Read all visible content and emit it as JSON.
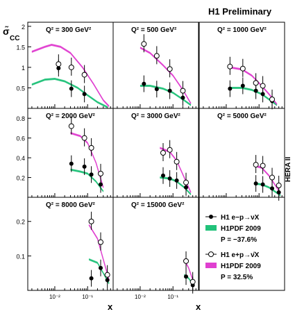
{
  "header": {
    "title": "H1 Preliminary"
  },
  "side_label": "HERA II",
  "ylabel_main": "σ̃",
  "ylabel_sub": "CC",
  "xlabel": "x",
  "legend": [
    {
      "label_a": "H1 e",
      "label_b": "p→νX",
      "sup": "−",
      "marker": "filled"
    },
    {
      "label": "H1PDF 2009",
      "band": "green"
    },
    {
      "label": "P = −37.6%",
      "sub": "e"
    },
    {
      "label_a": "H1 e",
      "label_b": "p→ν̄X",
      "sup": "+",
      "marker": "open"
    },
    {
      "label": "H1PDF 2009",
      "band": "magenta"
    },
    {
      "label": "P = 32.5%",
      "sub": "e"
    }
  ],
  "colors": {
    "eminus_band": "#22c27a",
    "eplus_band": "#e040d0",
    "eminus_line": "#1aa060",
    "eplus_line": "#cc22cc"
  },
  "chart_data": {
    "type": "scatter",
    "xscale": "log",
    "panels": [
      {
        "label": "Q² = 300 GeV²",
        "row": 0,
        "col": 0,
        "ylim": [
          0,
          2.1
        ],
        "yticks": [
          "0.5",
          "1",
          "1.5",
          "2"
        ],
        "ytickvals": [
          0.5,
          1,
          1.5,
          2
        ],
        "em_pts": [
          [
            0.013,
            0.98
          ],
          [
            0.032,
            0.48
          ],
          [
            0.08,
            0.35
          ]
        ],
        "ep_pts": [
          [
            0.013,
            1.08
          ],
          [
            0.032,
            1.0
          ],
          [
            0.08,
            0.82
          ]
        ],
        "em_curve": [
          [
            0.002,
            0.58
          ],
          [
            0.005,
            0.7
          ],
          [
            0.01,
            0.72
          ],
          [
            0.02,
            0.66
          ],
          [
            0.05,
            0.5
          ],
          [
            0.1,
            0.32
          ],
          [
            0.2,
            0.15
          ],
          [
            0.4,
            0.03
          ]
        ],
        "ep_curve": [
          [
            0.002,
            1.38
          ],
          [
            0.005,
            1.5
          ],
          [
            0.008,
            1.55
          ],
          [
            0.015,
            1.5
          ],
          [
            0.03,
            1.35
          ],
          [
            0.07,
            1.0
          ],
          [
            0.15,
            0.6
          ],
          [
            0.3,
            0.2
          ],
          [
            0.45,
            0.05
          ]
        ]
      },
      {
        "label": "Q² = 500 GeV²",
        "row": 0,
        "col": 1,
        "ylim": [
          0,
          2.1
        ],
        "yticks": [],
        "ytickvals": [],
        "em_pts": [
          [
            0.013,
            0.6
          ],
          [
            0.032,
            0.47
          ],
          [
            0.08,
            0.43
          ],
          [
            0.2,
            0.26
          ]
        ],
        "ep_pts": [
          [
            0.013,
            1.57
          ],
          [
            0.032,
            1.28
          ],
          [
            0.08,
            0.96
          ],
          [
            0.2,
            0.43
          ]
        ],
        "em_curve": [
          [
            0.01,
            0.55
          ],
          [
            0.02,
            0.55
          ],
          [
            0.05,
            0.48
          ],
          [
            0.1,
            0.38
          ],
          [
            0.2,
            0.22
          ],
          [
            0.35,
            0.08
          ]
        ],
        "ep_curve": [
          [
            0.01,
            1.48
          ],
          [
            0.02,
            1.35
          ],
          [
            0.05,
            1.05
          ],
          [
            0.1,
            0.8
          ],
          [
            0.2,
            0.45
          ],
          [
            0.35,
            0.12
          ]
        ]
      },
      {
        "label": "Q² = 1000 GeV²",
        "row": 0,
        "col": 2,
        "ylim": [
          0,
          2.1
        ],
        "yticks": [],
        "ytickvals": [],
        "em_pts": [
          [
            0.013,
            0.48
          ],
          [
            0.032,
            0.55
          ],
          [
            0.08,
            0.43
          ],
          [
            0.13,
            0.35
          ],
          [
            0.25,
            0.18
          ]
        ],
        "ep_pts": [
          [
            0.013,
            1.02
          ],
          [
            0.032,
            0.97
          ],
          [
            0.08,
            0.62
          ],
          [
            0.13,
            0.55
          ],
          [
            0.25,
            0.22
          ]
        ],
        "em_curve": [
          [
            0.013,
            0.5
          ],
          [
            0.03,
            0.5
          ],
          [
            0.06,
            0.45
          ],
          [
            0.12,
            0.35
          ],
          [
            0.2,
            0.22
          ],
          [
            0.35,
            0.08
          ]
        ],
        "ep_curve": [
          [
            0.013,
            1.0
          ],
          [
            0.03,
            0.95
          ],
          [
            0.06,
            0.8
          ],
          [
            0.12,
            0.55
          ],
          [
            0.2,
            0.35
          ],
          [
            0.35,
            0.1
          ]
        ]
      },
      {
        "label": "Q² = 2000 GeV²",
        "row": 1,
        "col": 0,
        "ylim": [
          0,
          0.9
        ],
        "yticks": [
          "0.2",
          "0.4",
          "0.6",
          "0.8"
        ],
        "ytickvals": [
          0.2,
          0.4,
          0.6,
          0.8
        ],
        "em_pts": [
          [
            0.032,
            0.34
          ],
          [
            0.08,
            0.31
          ],
          [
            0.13,
            0.23
          ],
          [
            0.25,
            0.13
          ]
        ],
        "ep_pts": [
          [
            0.032,
            0.72
          ],
          [
            0.08,
            0.6
          ],
          [
            0.13,
            0.5
          ],
          [
            0.25,
            0.24
          ]
        ],
        "em_curve": [
          [
            0.03,
            0.28
          ],
          [
            0.06,
            0.26
          ],
          [
            0.1,
            0.24
          ],
          [
            0.18,
            0.16
          ],
          [
            0.3,
            0.06
          ]
        ],
        "ep_curve": [
          [
            0.03,
            0.65
          ],
          [
            0.06,
            0.62
          ],
          [
            0.1,
            0.55
          ],
          [
            0.18,
            0.35
          ],
          [
            0.3,
            0.1
          ]
        ]
      },
      {
        "label": "Q² = 3000 GeV²",
        "row": 1,
        "col": 1,
        "ylim": [
          0,
          0.9
        ],
        "yticks": [],
        "ytickvals": [],
        "em_pts": [
          [
            0.05,
            0.22
          ],
          [
            0.08,
            0.19
          ],
          [
            0.13,
            0.17
          ],
          [
            0.25,
            0.1
          ]
        ],
        "ep_pts": [
          [
            0.05,
            0.45
          ],
          [
            0.08,
            0.48
          ],
          [
            0.13,
            0.36
          ],
          [
            0.25,
            0.15
          ]
        ],
        "em_curve": [
          [
            0.04,
            0.2
          ],
          [
            0.08,
            0.19
          ],
          [
            0.13,
            0.16
          ],
          [
            0.22,
            0.1
          ],
          [
            0.35,
            0.03
          ]
        ],
        "ep_curve": [
          [
            0.04,
            0.5
          ],
          [
            0.08,
            0.46
          ],
          [
            0.13,
            0.37
          ],
          [
            0.22,
            0.2
          ],
          [
            0.35,
            0.05
          ]
        ]
      },
      {
        "label": "Q² = 5000 GeV²",
        "row": 1,
        "col": 2,
        "ylim": [
          0,
          0.9
        ],
        "yticks": [],
        "ytickvals": [],
        "em_pts": [
          [
            0.08,
            0.14
          ],
          [
            0.13,
            0.13
          ],
          [
            0.25,
            0.09
          ],
          [
            0.4,
            0.05
          ]
        ],
        "ep_pts": [
          [
            0.08,
            0.33
          ],
          [
            0.13,
            0.32
          ],
          [
            0.25,
            0.2
          ],
          [
            0.4,
            0.12
          ]
        ],
        "em_curve": [
          [
            0.07,
            0.14
          ],
          [
            0.12,
            0.13
          ],
          [
            0.2,
            0.1
          ],
          [
            0.3,
            0.06
          ],
          [
            0.45,
            0.02
          ]
        ],
        "ep_curve": [
          [
            0.07,
            0.32
          ],
          [
            0.12,
            0.3
          ],
          [
            0.2,
            0.22
          ],
          [
            0.3,
            0.13
          ],
          [
            0.45,
            0.04
          ]
        ]
      },
      {
        "label": "Q² = 8000 GeV²",
        "row": 2,
        "col": 0,
        "ylim": [
          0,
          0.27
        ],
        "yticks": [
          "0.1",
          "0.2"
        ],
        "ytickvals": [
          0.1,
          0.2
        ],
        "em_pts": [
          [
            0.13,
            0.035
          ],
          [
            0.25,
            0.065
          ],
          [
            0.4,
            0.03
          ]
        ],
        "ep_pts": [
          [
            0.13,
            0.2
          ],
          [
            0.25,
            0.14
          ],
          [
            0.4,
            0.045
          ]
        ],
        "em_curve": [
          [
            0.11,
            0.09
          ],
          [
            0.2,
            0.08
          ],
          [
            0.3,
            0.05
          ],
          [
            0.45,
            0.02
          ]
        ],
        "ep_curve": [
          [
            0.11,
            0.19
          ],
          [
            0.2,
            0.15
          ],
          [
            0.3,
            0.09
          ],
          [
            0.45,
            0.03
          ]
        ]
      },
      {
        "label": "Q² = 15000 GeV²",
        "row": 2,
        "col": 1,
        "ylim": [
          0,
          0.27
        ],
        "yticks": [],
        "ytickvals": [],
        "em_pts": [
          [
            0.25,
            0.04
          ],
          [
            0.4,
            0.015
          ]
        ],
        "ep_pts": [
          [
            0.25,
            0.085
          ],
          [
            0.4,
            0.025
          ]
        ],
        "em_curve": [
          [
            0.22,
            0.045
          ],
          [
            0.3,
            0.035
          ],
          [
            0.42,
            0.015
          ]
        ],
        "ep_curve": [
          [
            0.22,
            0.09
          ],
          [
            0.3,
            0.065
          ],
          [
            0.42,
            0.025
          ]
        ]
      }
    ],
    "xticks": [
      "10⁻²",
      "10⁻¹"
    ]
  }
}
